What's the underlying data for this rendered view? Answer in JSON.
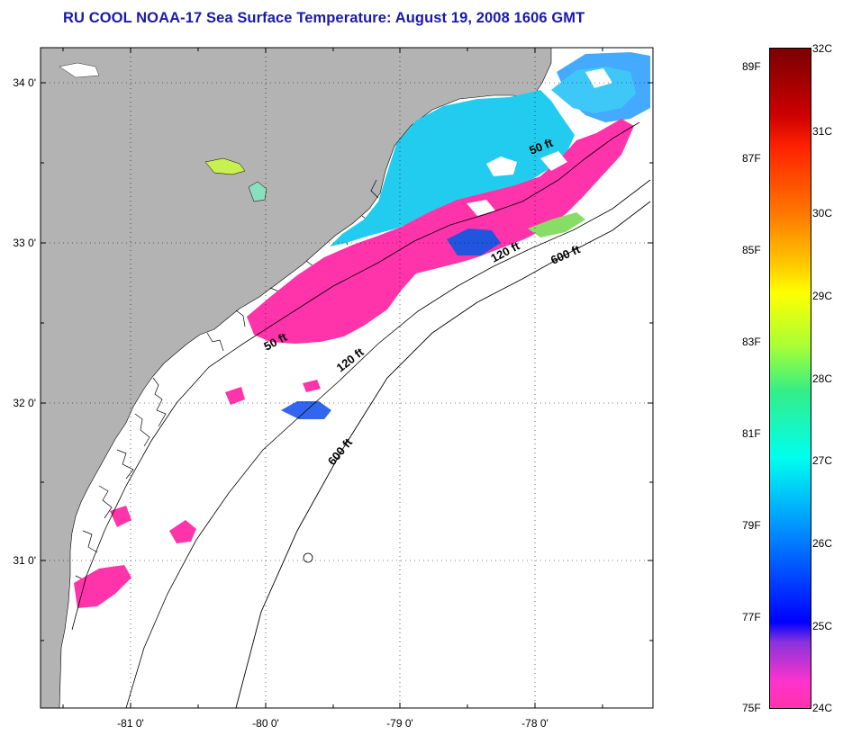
{
  "title": "RU COOL  NOAA-17  Sea Surface Temperature:  August 19, 2008 1606 GMT",
  "map": {
    "lat_labels": [
      "34 0'",
      "33 0'",
      "32 0'",
      "31 0'"
    ],
    "lon_labels": [
      "-81 0'",
      "-80 0'",
      "-79 0'",
      "-78 0'"
    ],
    "contours": {
      "upper_50": "50 ft",
      "upper_120": "120 ft",
      "upper_600": "600 ft",
      "lower_50": "50 ft",
      "lower_120": "120 ft",
      "lower_600": "600 ft"
    },
    "colors": {
      "land": "#b3b3b3",
      "ocean": "#ffffff",
      "cold": "#ff33aa",
      "cool": "#22ccee",
      "mid": "#00aaff"
    }
  },
  "colorbar": {
    "celsius": [
      "32C",
      "31C",
      "30C",
      "29C",
      "28C",
      "27C",
      "26C",
      "25C",
      "24C"
    ],
    "fahrenheit": [
      "89F",
      "87F",
      "85F",
      "83F",
      "81F",
      "79F",
      "77F",
      "75F"
    ]
  }
}
